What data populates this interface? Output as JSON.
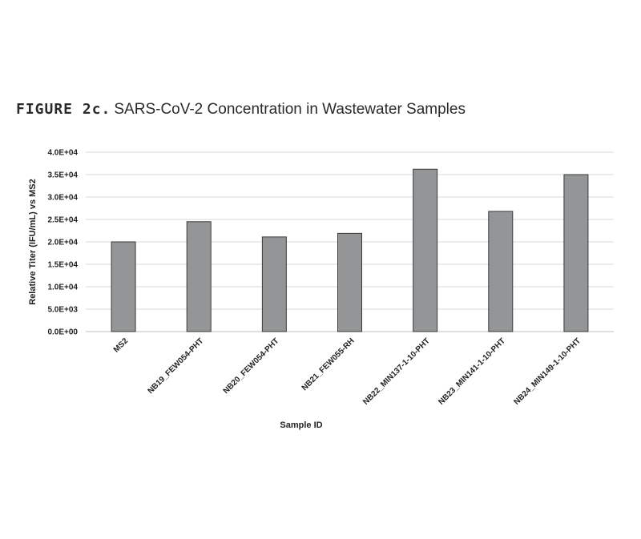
{
  "figure": {
    "label": "FIGURE 2c.",
    "title": "SARS-CoV-2 Concentration in Wastewater Samples"
  },
  "chart_data": {
    "type": "bar",
    "categories": [
      "MS2",
      "NB19_FEW054-PHT",
      "NB20_FEW054-PHT",
      "NB21_FEW055-RH",
      "NB22_MIN137-1-10-PHT",
      "NB23_MIN141-1-10-PHT",
      "NB24_MIN149-1-10-PHT"
    ],
    "values": [
      20000,
      24500,
      21100,
      21900,
      36200,
      26800,
      35000
    ],
    "xlabel": "Sample ID",
    "ylabel": "Relative Titer (IFU/mL) vs MS2",
    "ylim": [
      0,
      40000
    ],
    "yticks": [
      "0.0E+00",
      "5.0E+03",
      "1.0E+04",
      "1.5E+04",
      "2.0E+04",
      "2.5E+04",
      "3.0E+04",
      "3.5E+04",
      "4.0E+04"
    ],
    "grid": true,
    "legend": "none",
    "colors": {
      "bar": "#949597",
      "bar_stroke": "#3a3a3a",
      "grid": "#d9d9d9"
    }
  }
}
